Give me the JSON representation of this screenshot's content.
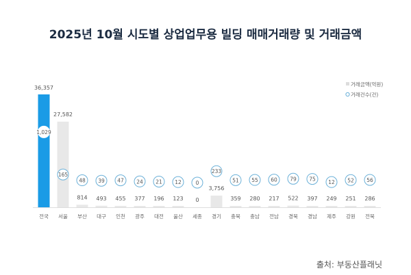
{
  "chart_data": {
    "type": "bar",
    "title": "2025년 10월 시도별 상업업무용 빌딩 매매거래량 및 거래금액",
    "categories": [
      "전국",
      "서울",
      "부산",
      "대구",
      "인천",
      "광주",
      "대전",
      "울산",
      "세종",
      "경기",
      "충북",
      "충남",
      "전남",
      "경북",
      "경남",
      "제주",
      "강원",
      "전북"
    ],
    "series": [
      {
        "name": "거래금액(억원)",
        "values": [
          36357,
          27582,
          814,
          493,
          455,
          377,
          196,
          123,
          0,
          3756,
          359,
          280,
          217,
          522,
          397,
          249,
          251,
          286
        ]
      },
      {
        "name": "거래건수(건)",
        "values": [
          1029,
          165,
          48,
          39,
          47,
          24,
          21,
          12,
          0,
          233,
          51,
          55,
          60,
          79,
          75,
          12,
          52,
          56
        ]
      }
    ],
    "legend": [
      "거래금액(억원)",
      "거래건수(건)"
    ],
    "legend_position": "top-right",
    "grid": false,
    "highlight_color": "#1a9be6",
    "bar_color": "#e8e8e8",
    "circle_color": "#6ab0d8"
  },
  "source": "출처: 부동산플래닛"
}
